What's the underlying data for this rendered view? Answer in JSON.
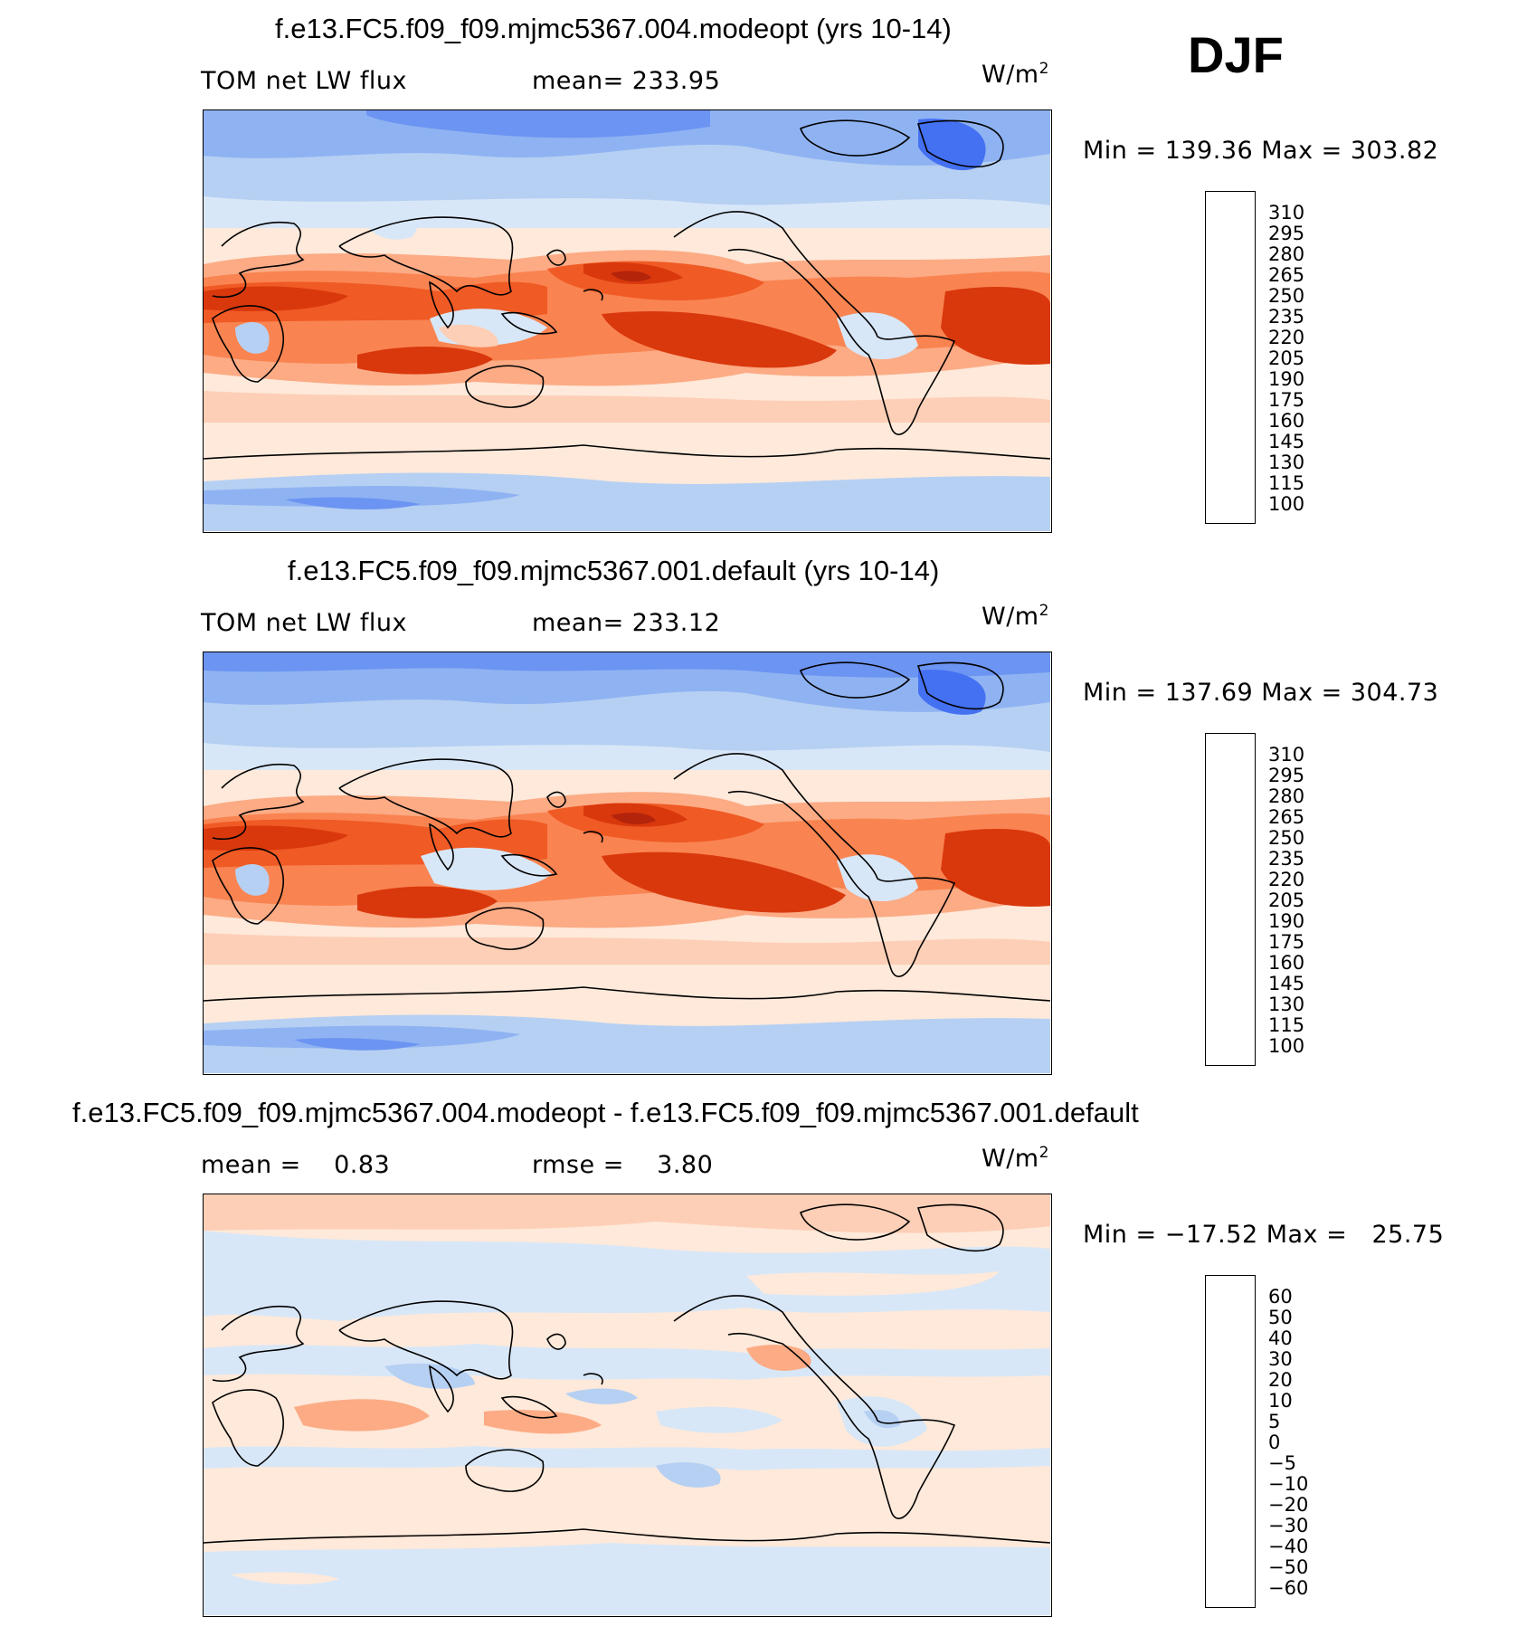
{
  "season": "DJF",
  "unit_base": "W/m",
  "unit_exp": "2",
  "panels": [
    {
      "title": "f.e13.FC5.f09_f09.mjmc5367.004.modeopt (yrs 10-14)",
      "left_label": "TOM net LW flux",
      "mid_label": "mean= 233.95",
      "minmax": "Min = 139.36 Max = 303.82"
    },
    {
      "title": "f.e13.FC5.f09_f09.mjmc5367.001.default (yrs 10-14)",
      "left_label": "TOM net LW flux",
      "mid_label": "mean= 233.12",
      "minmax": "Min = 137.69 Max = 304.73"
    },
    {
      "title": "f.e13.FC5.f09_f09.mjmc5367.004.modeopt - f.e13.FC5.f09_f09.mjmc5367.001.default",
      "left_label": "mean =    0.83",
      "mid_label": "rmse =    3.80",
      "minmax": "Min = −17.52 Max =   25.75"
    }
  ],
  "chart_data": [
    {
      "type": "heatmap",
      "title": "f.e13.FC5.f09_f09.mjmc5367.004.modeopt (yrs 10-14)",
      "variable": "TOM net LW flux",
      "units": "W/m2",
      "mean": 233.95,
      "min": 139.36,
      "max": 303.82,
      "colorbar_levels": [
        310,
        295,
        280,
        265,
        250,
        235,
        220,
        205,
        190,
        175,
        160,
        145,
        130,
        115,
        100
      ],
      "colors": [
        "#8a0a0a",
        "#b3240b",
        "#d9380c",
        "#f05a25",
        "#f98451",
        "#fcab85",
        "#fdcfb6",
        "#fee9da",
        "#d8e7f7",
        "#b6d0f3",
        "#8fb3f2",
        "#6c94f2",
        "#4470f2",
        "#1e48e0",
        "#0a22a8",
        "#05107a"
      ]
    },
    {
      "type": "heatmap",
      "title": "f.e13.FC5.f09_f09.mjmc5367.001.default (yrs 10-14)",
      "variable": "TOM net LW flux",
      "units": "W/m2",
      "mean": 233.12,
      "min": 137.69,
      "max": 304.73,
      "colorbar_levels": [
        310,
        295,
        280,
        265,
        250,
        235,
        220,
        205,
        190,
        175,
        160,
        145,
        130,
        115,
        100
      ],
      "colors": [
        "#8a0a0a",
        "#b3240b",
        "#d9380c",
        "#f05a25",
        "#f98451",
        "#fcab85",
        "#fdcfb6",
        "#fee9da",
        "#d8e7f7",
        "#b6d0f3",
        "#8fb3f2",
        "#6c94f2",
        "#4470f2",
        "#1e48e0",
        "#0a22a8",
        "#05107a"
      ]
    },
    {
      "type": "heatmap",
      "title": "f.e13.FC5.f09_f09.mjmc5367.004.modeopt - f.e13.FC5.f09_f09.mjmc5367.001.default",
      "units": "W/m2",
      "mean": 0.83,
      "rmse": 3.8,
      "min": -17.52,
      "max": 25.75,
      "colorbar_levels": [
        "60",
        "50",
        "40",
        "30",
        "20",
        "10",
        "5",
        "0",
        "−5",
        "−10",
        "−20",
        "−30",
        "−40",
        "−50",
        "−60"
      ],
      "colors": [
        "#8a0a0a",
        "#b3240b",
        "#d9380c",
        "#f05a25",
        "#f98451",
        "#fcab85",
        "#fdcfb6",
        "#fee9da",
        "#d8e7f7",
        "#b6d0f3",
        "#8fb3f2",
        "#6c94f2",
        "#4470f2",
        "#1e48e0",
        "#0a22a8",
        "#05107a"
      ]
    }
  ]
}
